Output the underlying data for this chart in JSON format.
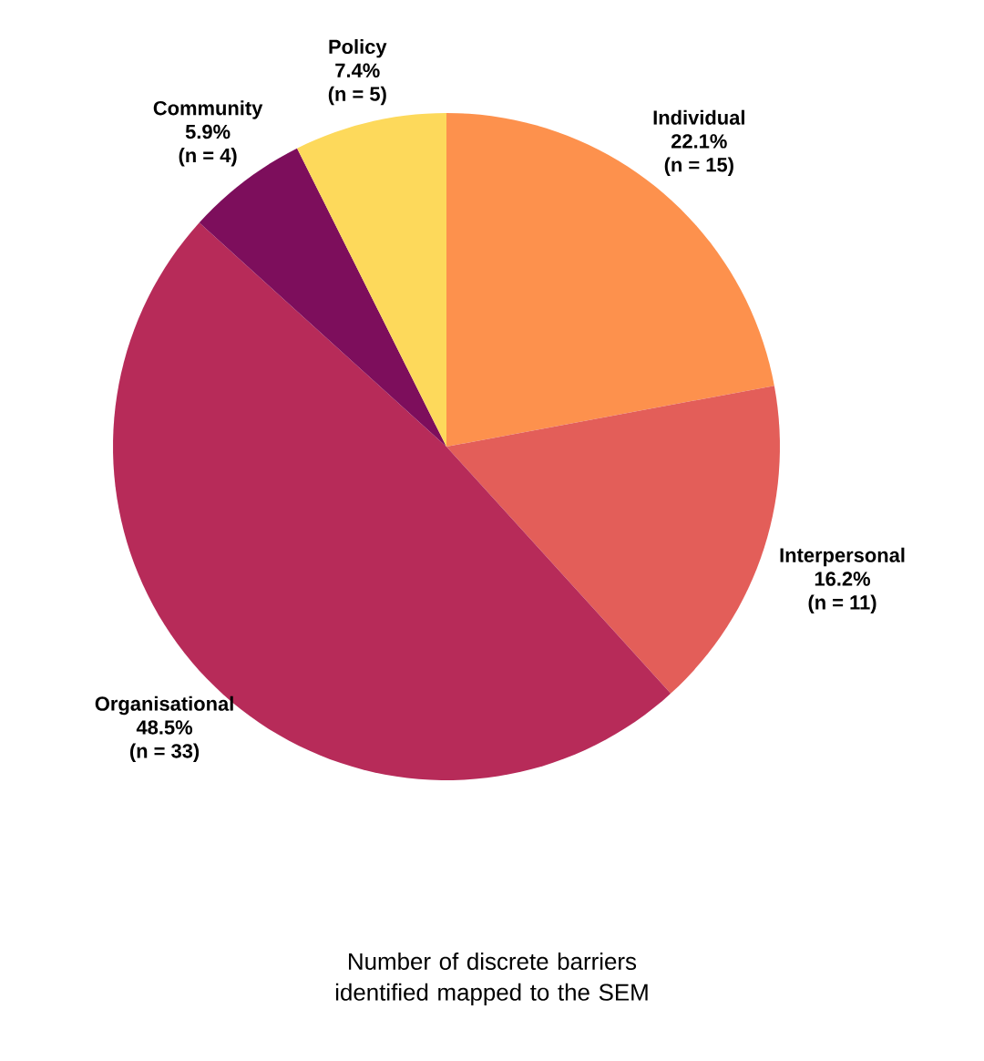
{
  "chart_data": {
    "type": "pie",
    "title": "Number of discrete barriers identified mapped to the SEM",
    "categories": [
      "Individual",
      "Interpersonal",
      "Organisational",
      "Community",
      "Policy"
    ],
    "values": [
      22.1,
      16.2,
      48.5,
      5.9,
      7.4
    ],
    "value_labels": [
      "22.1%",
      "16.2%",
      "48.5%",
      "5.9%",
      "7.4%"
    ],
    "annotations": [
      "(n = 15)",
      "(n = 11)",
      "(n = 33)",
      "(n = 4)",
      "(n = 5)"
    ],
    "colors": [
      "#fd914d",
      "#e35e59",
      "#b72b59",
      "#7d0e5c",
      "#fdd95b"
    ]
  }
}
